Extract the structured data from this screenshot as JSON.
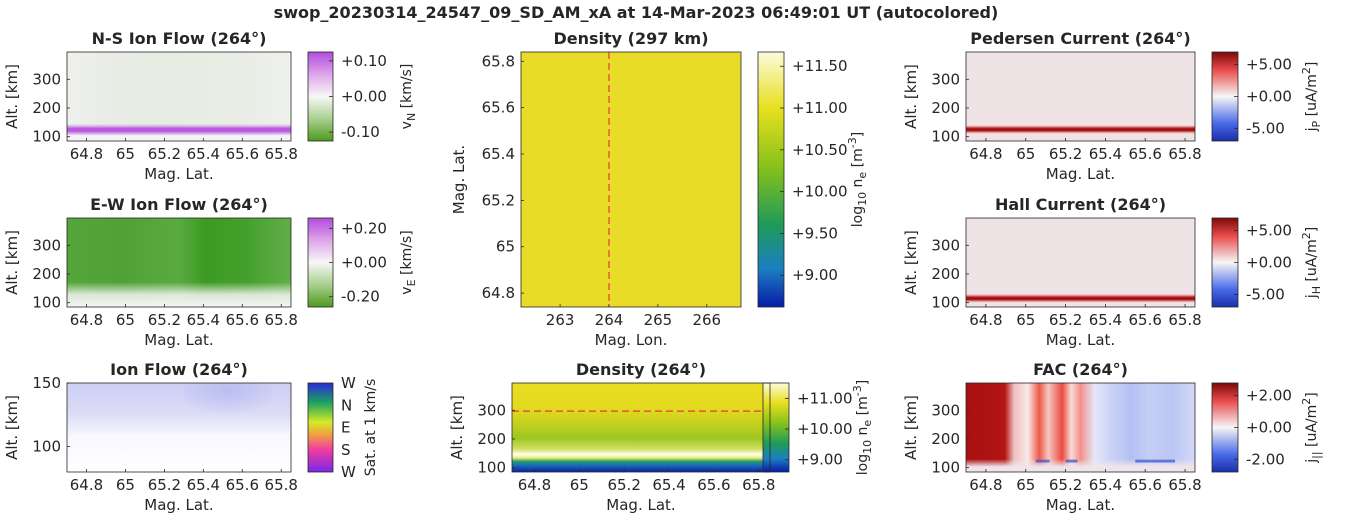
{
  "figure_title": "swop_20230314_24547_09_SD_AM_xA at 14-Mar-2023 06:49:01 UT (autocolored)",
  "chart_data": [
    {
      "id": "ns_flow",
      "type": "heatmap",
      "title": "N-S Ion Flow (264°)",
      "xlabel": "Mag. Lat.",
      "ylabel": "Alt. [km]",
      "xlim": [
        64.7,
        65.85
      ],
      "ylim": [
        85,
        395
      ],
      "xticks": [
        64.8,
        65,
        65.2,
        65.4,
        65.6,
        65.8
      ],
      "xticklabels": [
        "64.8",
        "65",
        "65.2",
        "65.4",
        "65.6",
        "65.8"
      ],
      "yticks": [
        100,
        200,
        300
      ],
      "yticklabels": [
        "100",
        "200",
        "300"
      ],
      "colorbar": {
        "label_main": "v",
        "label_sub": "N",
        "label_unit": " [km/s]",
        "ticks": [
          0.1,
          0.0,
          -0.1
        ],
        "ticklabels": [
          "+0.10",
          "+0.00",
          "-0.10"
        ],
        "lim": [
          -0.125,
          0.125
        ],
        "colormap": "green-white-purple"
      },
      "field": "thin purple layer (+0.10 km/s) near 125 km, pale green above"
    },
    {
      "id": "ew_flow",
      "type": "heatmap",
      "title": "E-W Ion Flow (264°)",
      "xlabel": "Mag. Lat.",
      "ylabel": "Alt. [km]",
      "xlim": [
        64.7,
        65.85
      ],
      "ylim": [
        85,
        395
      ],
      "xticks": [
        64.8,
        65,
        65.2,
        65.4,
        65.6,
        65.8
      ],
      "xticklabels": [
        "64.8",
        "65",
        "65.2",
        "65.4",
        "65.6",
        "65.8"
      ],
      "yticks": [
        100,
        200,
        300
      ],
      "yticklabels": [
        "100",
        "200",
        "300"
      ],
      "colorbar": {
        "label_main": "v",
        "label_sub": "E",
        "label_unit": " [km/s]",
        "ticks": [
          0.2,
          0.0,
          -0.2
        ],
        "ticklabels": [
          "+0.20",
          "+0.00",
          "-0.20"
        ],
        "lim": [
          -0.26,
          0.26
        ],
        "colormap": "green-white-purple"
      },
      "field": "green (about -0.15 km/s) above 130 km, strongest near 65.45"
    },
    {
      "id": "flow_dir",
      "type": "heatmap",
      "title": "Ion Flow (264°)",
      "xlabel": "Mag. Lat.",
      "ylabel": "Alt. [km]",
      "xlim": [
        64.7,
        65.85
      ],
      "ylim": [
        80,
        150
      ],
      "xticks": [
        64.8,
        65,
        65.2,
        65.4,
        65.6,
        65.8
      ],
      "xticklabels": [
        "64.8",
        "65",
        "65.2",
        "65.4",
        "65.6",
        "65.8"
      ],
      "yticks": [
        100,
        150
      ],
      "yticklabels": [
        "100",
        "150"
      ],
      "colorbar": {
        "label_main": "Sat. at 1 km/s",
        "ticklabels": [
          "W",
          "N",
          "E",
          "S",
          "W"
        ],
        "colormap": "direction-cyclic"
      },
      "field": "faint lavender above 125 km, white below"
    },
    {
      "id": "density_horiz",
      "type": "heatmap",
      "title": "Density (297 km)",
      "xlabel": "Mag. Lon.",
      "ylabel": "Mag. Lat.",
      "xlim": [
        262.2,
        266.7
      ],
      "ylim": [
        64.74,
        65.84
      ],
      "xticks": [
        263,
        264,
        265,
        266
      ],
      "xticklabels": [
        "263",
        "264",
        "265",
        "266"
      ],
      "yticks": [
        64.8,
        65,
        65.2,
        65.4,
        65.6,
        65.8
      ],
      "yticklabels": [
        "64.8",
        "65",
        "65.2",
        "65.4",
        "65.6",
        "65.8"
      ],
      "marker_line": {
        "orientation": "vertical",
        "x": 264,
        "color": "#e8383d"
      },
      "colorbar": {
        "label_main": "log",
        "label_sub": "10",
        "label_mid": " n",
        "label_sub2": "e",
        "label_unit": " [m",
        "label_sup": "-3",
        "label_end": "]",
        "ticks": [
          11.5,
          11.0,
          10.5,
          10.0,
          9.5,
          9.0
        ],
        "ticklabels": [
          "+11.50",
          "+11.00",
          "+10.50",
          "+10.00",
          "+9.50",
          "+9.00"
        ],
        "lim": [
          8.62,
          11.67
        ],
        "colormap": "blue-green-yellow"
      },
      "field": "uniform about 11.25"
    },
    {
      "id": "density_vert",
      "type": "heatmap",
      "title": "Density (264°)",
      "xlabel": "Mag. Lat.",
      "ylabel": "Alt. [km]",
      "xlim": [
        64.7,
        65.85
      ],
      "ylim": [
        85,
        395
      ],
      "xticks": [
        64.8,
        65,
        65.2,
        65.4,
        65.6,
        65.8
      ],
      "xticklabels": [
        "64.8",
        "65",
        "65.2",
        "65.4",
        "65.6",
        "65.8"
      ],
      "yticks": [
        100,
        200,
        300
      ],
      "yticklabels": [
        "100",
        "200",
        "300"
      ],
      "marker_line": {
        "orientation": "horizontal",
        "y": 297,
        "color": "#e8383d"
      },
      "colorbar": {
        "label_main": "log",
        "label_sub": "10",
        "label_mid": " n",
        "label_sub2": "e",
        "label_unit": " [m",
        "label_sup": "-3",
        "label_end": "]",
        "ticks": [
          11.0,
          10.0,
          9.0
        ],
        "ticklabels": [
          "+11.00",
          "+10.00",
          "+9.00"
        ],
        "lim": [
          8.6,
          11.5
        ],
        "colormap": "blue-green-yellow"
      },
      "field": "about 11.2 above 260 km, about 10.4 near 180 km, white layer near 120 km, blue below 110 km"
    },
    {
      "id": "pedersen",
      "type": "heatmap",
      "title": "Pedersen Current (264°)",
      "xlabel": "Mag. Lat.",
      "ylabel": "Alt. [km]",
      "xlim": [
        64.7,
        65.85
      ],
      "ylim": [
        85,
        395
      ],
      "xticks": [
        64.8,
        65,
        65.2,
        65.4,
        65.6,
        65.8
      ],
      "xticklabels": [
        "64.8",
        "65",
        "65.2",
        "65.4",
        "65.6",
        "65.8"
      ],
      "yticks": [
        100,
        200,
        300
      ],
      "yticklabels": [
        "100",
        "200",
        "300"
      ],
      "colorbar": {
        "label_main": "j",
        "label_sub": "P",
        "label_unit": " [uA/m",
        "label_sup": "2",
        "label_end": "]",
        "ticks": [
          5,
          0,
          -5
        ],
        "ticklabels": [
          "+5.00",
          "+0.00",
          "-5.00"
        ],
        "lim": [
          -7,
          7
        ],
        "colormap": "blue-white-red"
      },
      "field": "strong positive layer near 125 km, faint positive elsewhere"
    },
    {
      "id": "hall",
      "type": "heatmap",
      "title": "Hall Current (264°)",
      "xlabel": "Mag. Lat.",
      "ylabel": "Alt. [km]",
      "xlim": [
        64.7,
        65.85
      ],
      "ylim": [
        85,
        395
      ],
      "xticks": [
        64.8,
        65,
        65.2,
        65.4,
        65.6,
        65.8
      ],
      "xticklabels": [
        "64.8",
        "65",
        "65.2",
        "65.4",
        "65.6",
        "65.8"
      ],
      "yticks": [
        100,
        200,
        300
      ],
      "yticklabels": [
        "100",
        "200",
        "300"
      ],
      "colorbar": {
        "label_main": "j",
        "label_sub": "H",
        "label_unit": " [uA/m",
        "label_sup": "2",
        "label_end": "]",
        "ticks": [
          5,
          0,
          -5
        ],
        "ticklabels": [
          "+5.00",
          "+0.00",
          "-5.00"
        ],
        "lim": [
          -7,
          7
        ],
        "colormap": "blue-white-red"
      },
      "field": "strong positive layer near 115 km, faint positive elsewhere"
    },
    {
      "id": "fac",
      "type": "heatmap",
      "title": "FAC (264°)",
      "xlabel": "Mag. Lat.",
      "ylabel": "Alt. [km]",
      "xlim": [
        64.7,
        65.85
      ],
      "ylim": [
        85,
        395
      ],
      "xticks": [
        64.8,
        65,
        65.2,
        65.4,
        65.6,
        65.8
      ],
      "xticklabels": [
        "64.8",
        "65",
        "65.2",
        "65.4",
        "65.6",
        "65.8"
      ],
      "yticks": [
        100,
        200,
        300
      ],
      "yticklabels": [
        "100",
        "200",
        "300"
      ],
      "colorbar": {
        "label_main": "j",
        "label_sub": "||",
        "label_unit": " [uA/m",
        "label_sup": "2",
        "label_end": "]",
        "ticks": [
          2,
          0,
          -2
        ],
        "ticklabels": [
          "+2.00",
          "+0.00",
          "-2.00"
        ],
        "lim": [
          -2.8,
          2.8
        ],
        "colormap": "blue-white-red"
      },
      "field": "strong upward (red) 64.7-64.95, mixed 65.05-65.3, weak negative (blue) 65.35-65.85"
    }
  ]
}
